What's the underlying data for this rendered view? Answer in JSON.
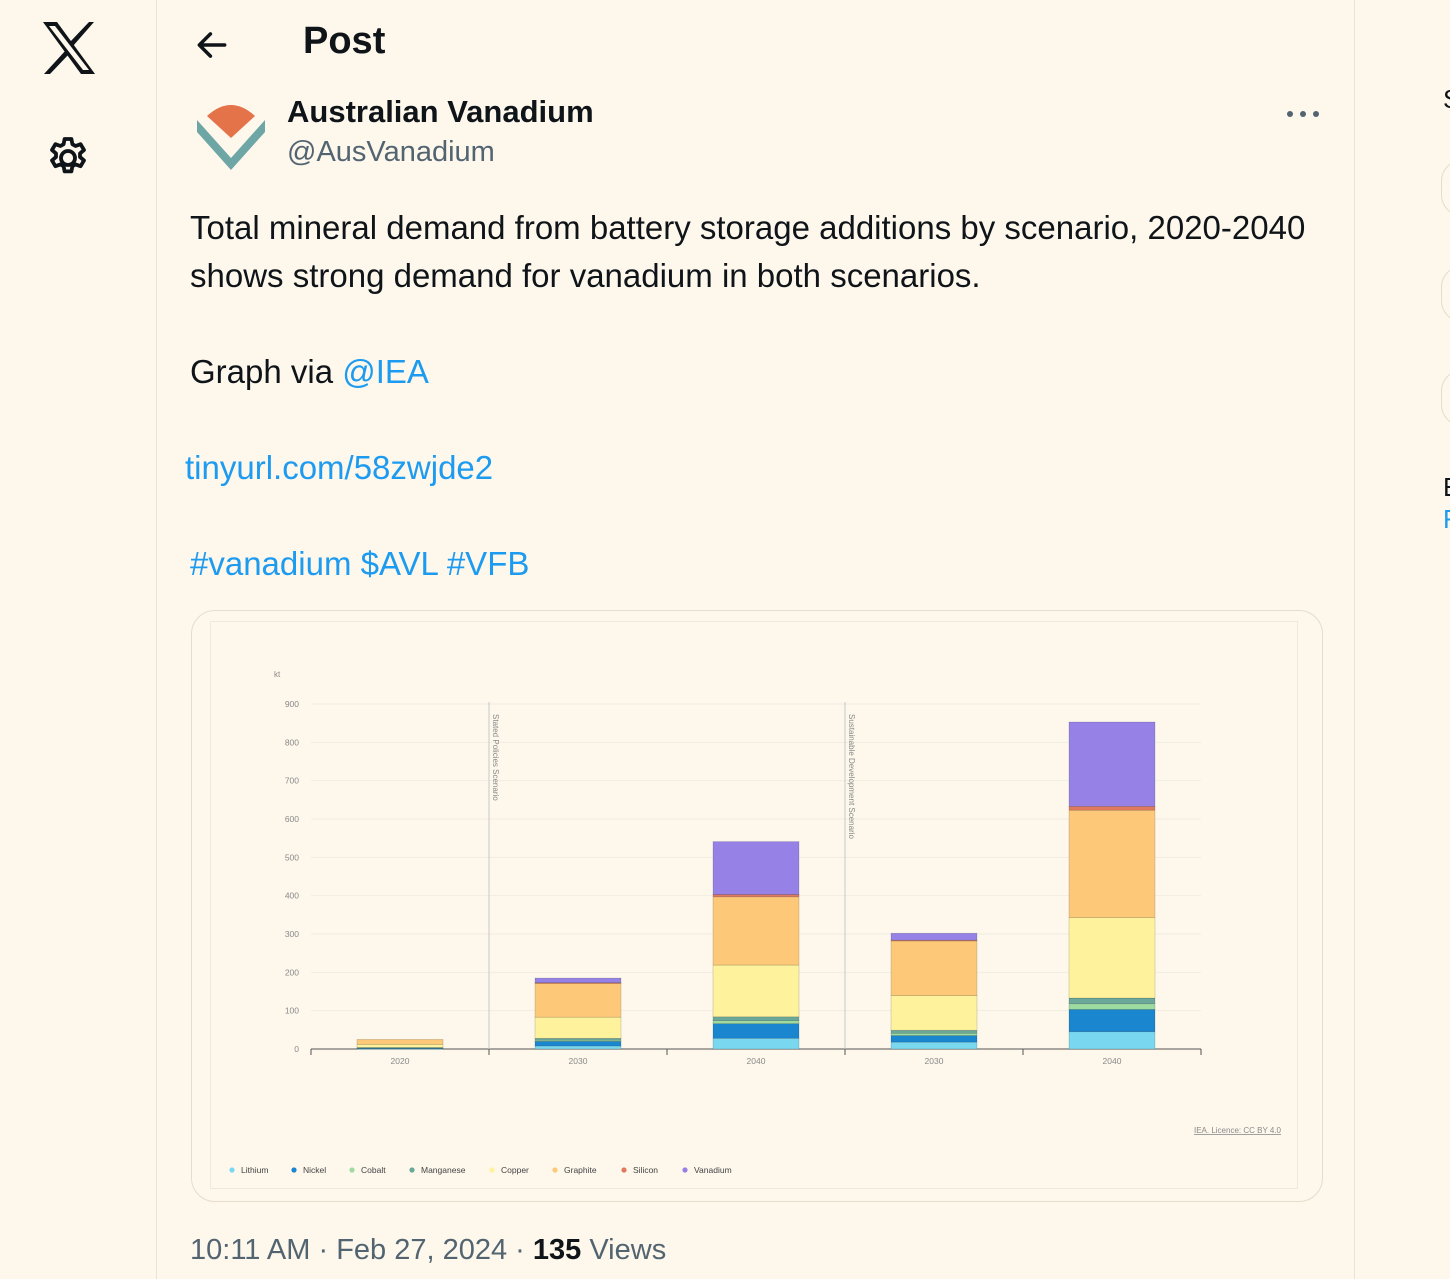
{
  "nav": {
    "logo_icon": "x-logo-icon",
    "settings_icon": "gear-icon"
  },
  "header": {
    "title": "Post",
    "back_icon": "arrow-left-icon"
  },
  "post": {
    "author_name": "Australian Vanadium",
    "author_handle": "@AusVanadium",
    "text_line1": "Total mineral demand from battery storage additions by scenario, 2020-2040 shows strong demand for vanadium in both scenarios.",
    "via_prefix": "Graph via ",
    "via_mention": "@IEA",
    "link": "tinyurl.com/58zwjde2",
    "hashtags": "#vanadium $AVL #VFB",
    "time": "10:11 AM",
    "date": "Feb 27, 2024",
    "views_count": "135",
    "views_label": "Views",
    "separator": "·"
  },
  "right_fragment": {
    "letters": [
      "S",
      "E",
      "F"
    ]
  },
  "chart_data": {
    "type": "bar",
    "stacked": true,
    "ylabel": "kt",
    "ylim": [
      0,
      900
    ],
    "yticks": [
      0,
      100,
      200,
      300,
      400,
      500,
      600,
      700,
      800,
      900
    ],
    "categories": [
      "2020",
      "2030",
      "2040",
      "2030",
      "2040"
    ],
    "scenario_labels": [
      "Stated Policies Scenario",
      "Sustainable Development Scenario"
    ],
    "source": "IEA. Licence: CC BY 4.0",
    "legend_position": "bottom-left",
    "series": [
      {
        "name": "Lithium",
        "color": "#7ad7f0",
        "values": [
          1,
          8,
          28,
          18,
          45
        ]
      },
      {
        "name": "Nickel",
        "color": "#1a86d0",
        "values": [
          2,
          12,
          38,
          17,
          58
        ]
      },
      {
        "name": "Cobalt",
        "color": "#9ddba0",
        "values": [
          0,
          3,
          8,
          6,
          15
        ]
      },
      {
        "name": "Manganese",
        "color": "#6aa89a",
        "values": [
          1,
          5,
          10,
          8,
          15
        ]
      },
      {
        "name": "Copper",
        "color": "#fff29c",
        "values": [
          8,
          55,
          135,
          90,
          210
        ]
      },
      {
        "name": "Graphite",
        "color": "#fdc878",
        "values": [
          13,
          88,
          178,
          143,
          280
        ]
      },
      {
        "name": "Silicon",
        "color": "#e07a5f",
        "values": [
          0,
          2,
          6,
          2,
          10
        ]
      },
      {
        "name": "Vanadium",
        "color": "#9682e6",
        "values": [
          0,
          12,
          138,
          18,
          220
        ]
      }
    ]
  }
}
